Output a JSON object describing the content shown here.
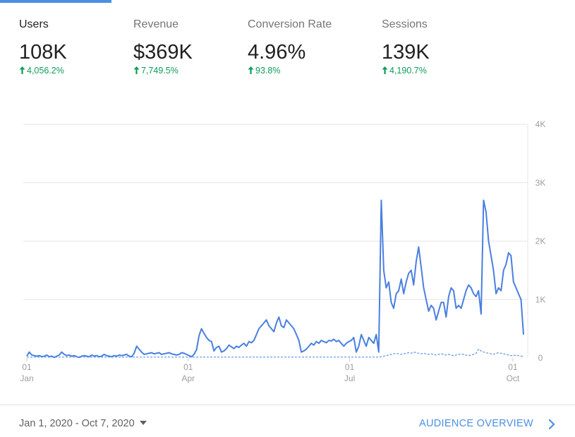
{
  "metrics": [
    {
      "label": "Users",
      "value": "108K",
      "change": "4,056.2%",
      "trend": "up",
      "active": true
    },
    {
      "label": "Revenue",
      "value": "$369K",
      "change": "7,749.5%",
      "trend": "up",
      "active": false
    },
    {
      "label": "Conversion Rate",
      "value": "4.96%",
      "change": "93.8%",
      "trend": "up",
      "active": false
    },
    {
      "label": "Sessions",
      "value": "139K",
      "change": "4,190.7%",
      "trend": "up",
      "active": false
    }
  ],
  "chart_data": {
    "type": "line",
    "y_ticks": [
      "0",
      "1K",
      "2K",
      "3K",
      "4K"
    ],
    "y_tick_values": [
      0,
      1000,
      2000,
      3000,
      4000
    ],
    "ylim": [
      0,
      4000
    ],
    "x_tick_dates": [
      "2020-01-01",
      "2020-04-01",
      "2020-07-01",
      "2020-10-01"
    ],
    "x_ticks": [
      {
        "day": "01",
        "month": "Jan"
      },
      {
        "day": "01",
        "month": "Apr"
      },
      {
        "day": "01",
        "month": "Jul"
      },
      {
        "day": "01",
        "month": "Oct"
      }
    ],
    "grid": true,
    "colors": {
      "current": "#4a7fe0",
      "previous": "#5b92e5",
      "grid": "#e6e6e6",
      "positive": "#0f9d58",
      "accent": "#4a90e2"
    },
    "series": [
      {
        "style": "solid",
        "x_start": "2020-01-01",
        "x_end": "2020-10-07",
        "values": [
          30,
          100,
          50,
          40,
          30,
          40,
          20,
          30,
          50,
          20,
          30,
          10,
          30,
          50,
          100,
          60,
          40,
          50,
          30,
          40,
          20,
          10,
          30,
          40,
          30,
          20,
          50,
          30,
          40,
          20,
          30,
          60,
          40,
          30,
          20,
          40,
          30,
          50,
          40,
          50,
          60,
          30,
          20,
          80,
          200,
          150,
          100,
          60,
          70,
          80,
          90,
          70,
          80,
          90,
          60,
          70,
          80,
          90,
          70,
          60,
          50,
          60,
          90,
          80,
          60,
          40,
          20,
          60,
          140,
          380,
          500,
          420,
          350,
          300,
          280,
          120,
          180,
          200,
          100,
          120,
          160,
          220,
          190,
          160,
          200,
          180,
          220,
          250,
          200,
          280,
          260,
          300,
          400,
          500,
          550,
          600,
          650,
          550,
          500,
          450,
          600,
          700,
          550,
          520,
          650,
          600,
          550,
          500,
          400,
          300,
          100,
          120,
          150,
          200,
          250,
          220,
          280,
          250,
          300,
          280,
          260,
          300,
          290,
          320,
          280,
          300,
          250,
          200,
          250,
          280,
          300,
          350,
          100,
          200,
          400,
          300,
          200,
          350,
          300,
          250,
          400,
          100,
          2700,
          1500,
          1200,
          1300,
          950,
          850,
          1100,
          1150,
          1350,
          1100,
          1300,
          1450,
          1500,
          1250,
          1650,
          1900,
          1550,
          1200,
          1000,
          800,
          900,
          850,
          650,
          800,
          950,
          950,
          700,
          1050,
          1200,
          1150,
          850,
          900,
          850,
          1000,
          1150,
          1250,
          1200,
          1100,
          1050,
          1150,
          750,
          2700,
          2500,
          2000,
          1750,
          1500,
          1100,
          1200,
          1150,
          1500,
          1600,
          1800,
          1750,
          1300,
          1200,
          1100,
          1000,
          400
        ]
      },
      {
        "style": "dashed",
        "x_start": "2020-01-01",
        "x_end": "2020-10-07",
        "values": [
          15,
          15,
          15,
          15,
          15,
          15,
          15,
          15,
          15,
          15,
          15,
          15,
          15,
          15,
          15,
          15,
          15,
          15,
          15,
          15,
          15,
          15,
          15,
          15,
          15,
          15,
          15,
          15,
          15,
          15,
          15,
          15,
          15,
          15,
          15,
          15,
          15,
          15,
          15,
          15,
          15,
          15,
          15,
          15,
          15,
          15,
          15,
          15,
          15,
          15,
          15,
          15,
          15,
          15,
          15,
          15,
          15,
          15,
          15,
          15,
          15,
          15,
          15,
          15,
          15,
          15,
          15,
          15,
          15,
          15,
          15,
          15,
          15,
          15,
          15,
          15,
          15,
          15,
          15,
          15,
          15,
          15,
          15,
          15,
          15,
          15,
          15,
          15,
          15,
          15,
          15,
          15,
          15,
          15,
          15,
          15,
          15,
          15,
          15,
          15,
          15,
          15,
          15,
          15,
          15,
          15,
          15,
          15,
          15,
          15,
          15,
          15,
          15,
          15,
          15,
          15,
          15,
          15,
          15,
          15,
          15,
          15,
          15,
          15,
          15,
          15,
          15,
          15,
          15,
          15,
          15,
          15,
          15,
          15,
          15,
          15,
          15,
          15,
          15,
          15,
          15,
          15,
          20,
          30,
          40,
          50,
          60,
          70,
          80,
          70,
          60,
          70,
          80,
          90,
          80,
          100,
          90,
          80,
          70,
          80,
          70,
          60,
          70,
          60,
          50,
          60,
          70,
          60,
          50,
          60,
          50,
          40,
          50,
          60,
          70,
          60,
          50,
          40,
          50,
          60,
          80,
          150,
          120,
          100,
          90,
          80,
          70,
          60,
          80,
          90,
          80,
          70,
          60,
          50,
          40,
          50,
          40,
          40,
          30,
          25
        ]
      }
    ]
  },
  "footer": {
    "date_range": "Jan 1, 2020 - Oct 7, 2020",
    "link_label": "AUDIENCE OVERVIEW"
  }
}
